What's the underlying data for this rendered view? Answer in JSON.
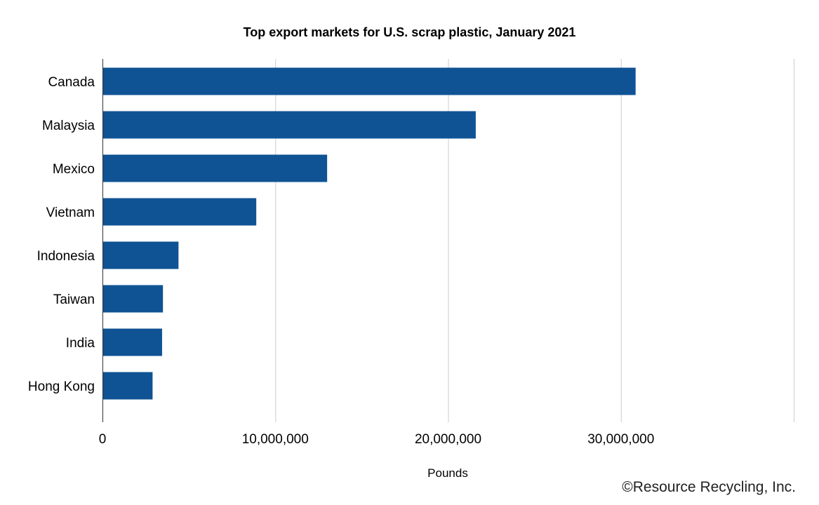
{
  "chart_data": {
    "type": "bar",
    "orientation": "horizontal",
    "title": "Top export markets for U.S. scrap plastic, January 2021",
    "xlabel": "Pounds",
    "ylabel": "",
    "categories": [
      "Canada",
      "Malaysia",
      "Mexico",
      "Vietnam",
      "Indonesia",
      "Taiwan",
      "India",
      "Hong Kong"
    ],
    "values": [
      30850000,
      21600000,
      13000000,
      8900000,
      4400000,
      3500000,
      3450000,
      2900000
    ],
    "xlim": [
      0,
      40000000
    ],
    "xticks": [
      0,
      10000000,
      20000000,
      30000000
    ],
    "xtick_labels": [
      "0",
      "10,000,000",
      "20,000,000",
      "30,000,000"
    ],
    "grid": true,
    "bar_color": "#0f5394",
    "grid_color": "#cccccc"
  },
  "credit": "©Resource Recycling, Inc."
}
